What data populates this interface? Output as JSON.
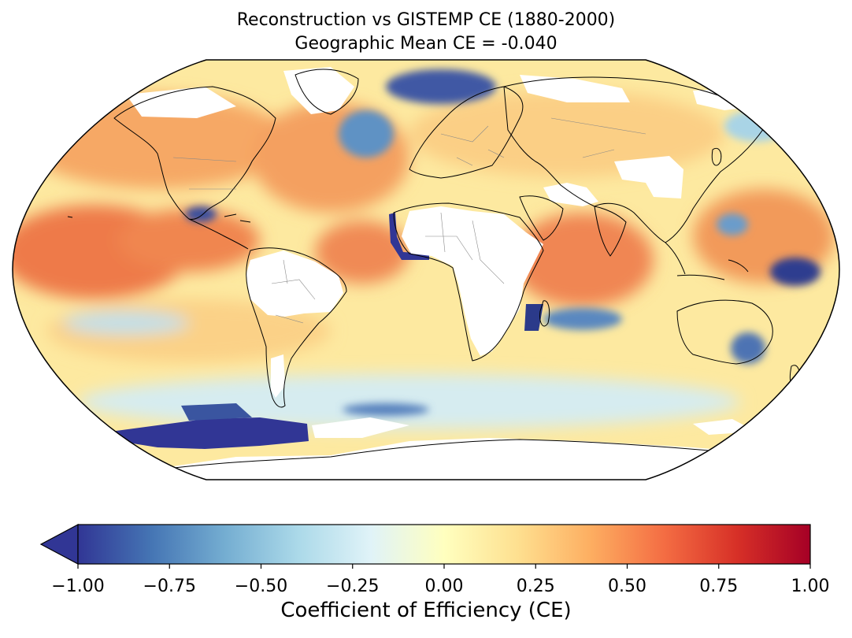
{
  "chart_data": {
    "type": "heatmap",
    "projection": "robinson",
    "title": "Reconstruction vs GISTEMP CE (1880-2000)",
    "subtitle": "Geographic Mean CE = -0.040",
    "colorbar": {
      "label": "Coefficient of Efficiency (CE)",
      "colormap": "RdYlBu_r",
      "vmin": -1.0,
      "vmax": 1.0,
      "extend": "min",
      "ticks": [
        -1.0,
        -0.75,
        -0.5,
        -0.25,
        0.0,
        0.25,
        0.5,
        0.75,
        1.0
      ],
      "tick_labels": [
        "−1.00",
        "−0.75",
        "−0.50",
        "−0.25",
        "0.00",
        "0.25",
        "0.50",
        "0.75",
        "1.00"
      ],
      "stops": [
        "#313695",
        "#4575b4",
        "#74add1",
        "#abd9e9",
        "#e0f3f8",
        "#ffffbf",
        "#fee090",
        "#fdae61",
        "#f46d43",
        "#d73027",
        "#a50026"
      ]
    },
    "missing_color": "#ffffff",
    "colors": {
      "background_ocean": "#fde9a0",
      "warm": "#f39a5c",
      "hot": "#ec6a45",
      "cool": "#b7dbe9",
      "cold": "#5a8cc2",
      "very_cold": "#313695"
    }
  }
}
